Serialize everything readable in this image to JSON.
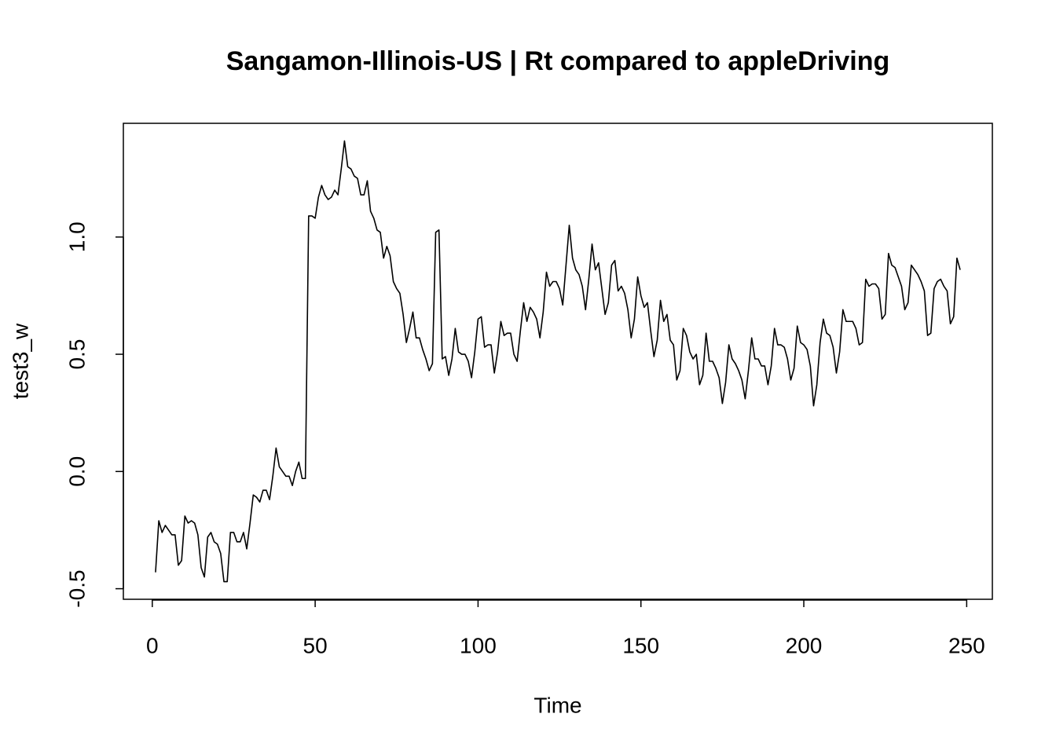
{
  "chart_data": {
    "type": "line",
    "title": "Sangamon-Illinois-US | Rt compared to appleDriving",
    "x_label": "Time",
    "y_label": "test3_w",
    "color": "#000000",
    "x": [
      1,
      2,
      3,
      4,
      5,
      6,
      7,
      8,
      9,
      10,
      11,
      12,
      13,
      14,
      15,
      16,
      17,
      18,
      19,
      20,
      21,
      22,
      23,
      24,
      25,
      26,
      27,
      28,
      29,
      30,
      31,
      32,
      33,
      34,
      35,
      36,
      37,
      38,
      39,
      40,
      41,
      42,
      43,
      44,
      45,
      46,
      47,
      48,
      49,
      50,
      51,
      52,
      53,
      54,
      55,
      56,
      57,
      58,
      59,
      60,
      61,
      62,
      63,
      64,
      65,
      66,
      67,
      68,
      69,
      70,
      71,
      72,
      73,
      74,
      75,
      76,
      77,
      78,
      79,
      80,
      81,
      82,
      83,
      84,
      85,
      86,
      87,
      88,
      89,
      90,
      91,
      92,
      93,
      94,
      95,
      96,
      97,
      98,
      99,
      100,
      101,
      102,
      103,
      104,
      105,
      106,
      107,
      108,
      109,
      110,
      111,
      112,
      113,
      114,
      115,
      116,
      117,
      118,
      119,
      120,
      121,
      122,
      123,
      124,
      125,
      126,
      127,
      128,
      129,
      130,
      131,
      132,
      133,
      134,
      135,
      136,
      137,
      138,
      139,
      140,
      141,
      142,
      143,
      144,
      145,
      146,
      147,
      148,
      149,
      150,
      151,
      152,
      153,
      154,
      155,
      156,
      157,
      158,
      159,
      160,
      161,
      162,
      163,
      164,
      165,
      166,
      167,
      168,
      169,
      170,
      171,
      172,
      173,
      174,
      175,
      176,
      177,
      178,
      179,
      180,
      181,
      182,
      183,
      184,
      185,
      186,
      187,
      188,
      189,
      190,
      191,
      192,
      193,
      194,
      195,
      196,
      197,
      198,
      199,
      200,
      201,
      202,
      203,
      204,
      205,
      206,
      207,
      208,
      209,
      210,
      211,
      212,
      213,
      214,
      215,
      216,
      217,
      218,
      219,
      220,
      221,
      222,
      223,
      224,
      225,
      226,
      227,
      228,
      229,
      230,
      231,
      232,
      233,
      234,
      235,
      236,
      237,
      238,
      239,
      240,
      241,
      242,
      243,
      244,
      245,
      246,
      247,
      248
    ],
    "values": [
      -0.43,
      -0.21,
      -0.26,
      -0.23,
      -0.25,
      -0.27,
      -0.27,
      -0.4,
      -0.38,
      -0.19,
      -0.22,
      -0.21,
      -0.22,
      -0.27,
      -0.41,
      -0.45,
      -0.28,
      -0.26,
      -0.3,
      -0.31,
      -0.35,
      -0.47,
      -0.47,
      -0.26,
      -0.26,
      -0.3,
      -0.3,
      -0.26,
      -0.33,
      -0.22,
      -0.1,
      -0.11,
      -0.13,
      -0.08,
      -0.08,
      -0.12,
      -0.02,
      0.1,
      0.02,
      0.0,
      -0.02,
      -0.02,
      -0.06,
      0.0,
      0.04,
      -0.03,
      -0.03,
      1.09,
      1.09,
      1.08,
      1.17,
      1.22,
      1.18,
      1.16,
      1.17,
      1.2,
      1.18,
      1.29,
      1.41,
      1.3,
      1.29,
      1.26,
      1.25,
      1.18,
      1.18,
      1.24,
      1.11,
      1.08,
      1.03,
      1.02,
      0.91,
      0.96,
      0.92,
      0.81,
      0.78,
      0.76,
      0.67,
      0.55,
      0.61,
      0.68,
      0.57,
      0.57,
      0.52,
      0.48,
      0.43,
      0.46,
      1.02,
      1.03,
      0.48,
      0.49,
      0.41,
      0.48,
      0.61,
      0.51,
      0.5,
      0.5,
      0.47,
      0.4,
      0.51,
      0.65,
      0.66,
      0.53,
      0.54,
      0.54,
      0.42,
      0.51,
      0.64,
      0.58,
      0.59,
      0.59,
      0.5,
      0.47,
      0.6,
      0.72,
      0.64,
      0.7,
      0.68,
      0.65,
      0.57,
      0.68,
      0.85,
      0.79,
      0.81,
      0.81,
      0.78,
      0.71,
      0.88,
      1.05,
      0.91,
      0.86,
      0.84,
      0.79,
      0.69,
      0.82,
      0.97,
      0.86,
      0.89,
      0.78,
      0.67,
      0.72,
      0.88,
      0.9,
      0.77,
      0.79,
      0.76,
      0.69,
      0.57,
      0.65,
      0.83,
      0.75,
      0.7,
      0.72,
      0.6,
      0.49,
      0.56,
      0.73,
      0.64,
      0.67,
      0.56,
      0.54,
      0.39,
      0.43,
      0.61,
      0.58,
      0.51,
      0.48,
      0.5,
      0.37,
      0.41,
      0.59,
      0.47,
      0.47,
      0.44,
      0.4,
      0.29,
      0.38,
      0.54,
      0.48,
      0.46,
      0.43,
      0.39,
      0.31,
      0.43,
      0.57,
      0.48,
      0.48,
      0.45,
      0.45,
      0.37,
      0.45,
      0.61,
      0.54,
      0.54,
      0.53,
      0.48,
      0.39,
      0.44,
      0.62,
      0.55,
      0.54,
      0.52,
      0.45,
      0.28,
      0.37,
      0.55,
      0.65,
      0.59,
      0.58,
      0.53,
      0.42,
      0.51,
      0.69,
      0.64,
      0.64,
      0.64,
      0.61,
      0.54,
      0.55,
      0.82,
      0.79,
      0.8,
      0.8,
      0.78,
      0.65,
      0.67,
      0.93,
      0.88,
      0.87,
      0.83,
      0.79,
      0.69,
      0.72,
      0.88,
      0.86,
      0.84,
      0.81,
      0.77,
      0.58,
      0.59,
      0.78,
      0.81,
      0.82,
      0.79,
      0.77,
      0.63,
      0.66,
      0.91,
      0.86
    ],
    "xlim": [
      -8.88,
      257.88
    ],
    "ylim": [
      -0.545,
      1.485
    ],
    "xticks": [
      0,
      50,
      100,
      150,
      200,
      250
    ],
    "yticks": [
      -0.5,
      {
        "value": 0,
        "label": "0.0"
      },
      0.5,
      {
        "value": 1,
        "label": "1.0"
      }
    ]
  }
}
